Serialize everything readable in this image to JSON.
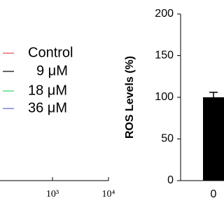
{
  "chart_data": [
    {
      "type": "line",
      "xscale": "log",
      "xlim": [
        100,
        10000
      ],
      "xticks": [
        {
          "value": 1000,
          "label": "10³"
        },
        {
          "value": 10000,
          "label": "10⁴"
        }
      ],
      "series": [
        {
          "name": "Control",
          "color": "#e8474f"
        },
        {
          "name": "9 μM",
          "color": "#000000"
        },
        {
          "name": "18 μM",
          "color": "#2fd16a"
        },
        {
          "name": "36 μM",
          "color": "#5b63d6"
        }
      ]
    },
    {
      "type": "bar",
      "ylabel": "ROS Levels (%)",
      "categories": [
        "0"
      ],
      "values": [
        100
      ],
      "errors": [
        6
      ],
      "color": "#000000",
      "ylim": [
        0,
        200
      ],
      "yticks": [
        0,
        50,
        100,
        150,
        200
      ]
    }
  ]
}
